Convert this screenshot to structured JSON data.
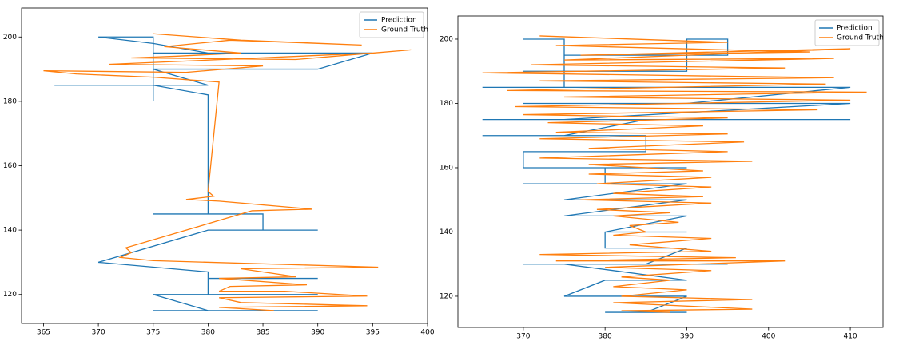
{
  "chart_data": [
    {
      "type": "line",
      "legend": "upper right",
      "grid": false,
      "xlim": [
        363,
        400
      ],
      "ylim": [
        111,
        209
      ],
      "xticks": [
        365,
        370,
        375,
        380,
        385,
        390,
        395,
        400
      ],
      "yticks": [
        120,
        140,
        160,
        180,
        200
      ],
      "series": [
        {
          "name": "Prediction",
          "color": "#1f77b4",
          "x": [
            375,
            375,
            370,
            366,
            380,
            375,
            390,
            395,
            375,
            380,
            375,
            370,
            375,
            375,
            380,
            380,
            380,
            375,
            385,
            385,
            390,
            380,
            370,
            380,
            380,
            390,
            380,
            380,
            390,
            375,
            380,
            375,
            390
          ],
          "values": [
            180,
            185,
            185,
            185,
            185,
            190,
            190,
            195,
            195,
            195,
            198,
            200,
            200,
            185,
            182,
            180,
            145,
            145,
            145,
            140,
            140,
            140,
            130,
            127,
            125,
            125,
            125,
            120,
            120,
            120,
            115,
            115,
            115
          ]
        },
        {
          "name": "Ground Truth",
          "color": "#ff7f0e",
          "x": [
            375,
            383,
            394,
            382,
            376,
            383,
            377,
            373,
            388,
            398.5,
            395,
            371,
            385,
            378,
            365,
            368,
            375,
            381,
            380,
            380.5,
            378,
            381,
            389.5,
            384,
            372.5,
            373,
            372,
            375,
            395.5,
            383,
            386,
            388,
            381,
            389,
            382,
            381,
            387,
            394.5,
            381,
            383,
            394.5,
            381,
            386
          ],
          "values": [
            201,
            199,
            197.5,
            199,
            197,
            195,
            194,
            193.5,
            193,
            196,
            195,
            191.5,
            191,
            189,
            189.5,
            188.5,
            187.5,
            186,
            152,
            150.5,
            149.5,
            149,
            146.5,
            146,
            134.5,
            133,
            131.5,
            130.5,
            128.5,
            128,
            126.5,
            125.5,
            125,
            123,
            122.5,
            121,
            121,
            119.5,
            119,
            117.5,
            116.5,
            116,
            115
          ]
        }
      ]
    },
    {
      "type": "line",
      "legend": "upper right",
      "grid": false,
      "xlim": [
        362,
        414
      ],
      "ylim": [
        110.3,
        207.2
      ],
      "xticks": [
        370,
        380,
        390,
        400,
        410
      ],
      "yticks": [
        120,
        140,
        160,
        180,
        200
      ],
      "series": [
        {
          "name": "Prediction",
          "color": "#1f77b4",
          "x": [
            370,
            375,
            375,
            370,
            390,
            390,
            395,
            395,
            375,
            375,
            365,
            410,
            390,
            370,
            410,
            375,
            365,
            410,
            395,
            385,
            375,
            365,
            385,
            385,
            370,
            370,
            390,
            380,
            380,
            370,
            390,
            375,
            390,
            375,
            390,
            380,
            390,
            380,
            380,
            390,
            385,
            370,
            395,
            375,
            390,
            380,
            375,
            390,
            385,
            380,
            390
          ],
          "values": [
            200,
            200,
            190,
            190,
            190,
            200,
            200,
            195,
            195,
            185,
            185,
            185,
            180,
            180,
            180,
            175,
            175,
            175,
            175,
            175,
            170,
            170,
            170,
            165,
            165,
            160,
            160,
            160,
            155,
            155,
            155,
            150,
            150,
            145,
            145,
            140,
            140,
            140,
            135,
            135,
            130,
            130,
            130,
            130,
            125,
            125,
            120,
            120,
            115,
            115,
            115
          ]
        },
        {
          "name": "Ground Truth",
          "color": "#ff7f0e",
          "x": [
            372,
            395,
            374,
            405,
            377,
            410,
            375,
            408,
            371,
            402,
            365,
            408,
            372,
            407,
            368,
            412,
            375,
            410,
            369,
            406,
            370,
            395,
            373,
            392,
            374,
            395,
            372,
            397,
            378,
            395,
            372,
            398,
            378,
            392,
            378,
            393,
            379,
            393,
            381,
            392,
            377,
            393,
            379,
            388,
            381,
            389,
            383,
            385,
            381,
            393,
            383,
            393,
            372,
            396,
            374,
            402,
            380,
            393,
            382,
            388,
            381,
            390,
            382,
            398,
            381,
            398,
            382,
            388
          ],
          "values": [
            201,
            199,
            198,
            196,
            195,
            197,
            193.5,
            194,
            192,
            191,
            189.5,
            188,
            187,
            186,
            184,
            183.5,
            182,
            181,
            179,
            178,
            176.5,
            175.5,
            174,
            173,
            171,
            170.5,
            169,
            168,
            166,
            165,
            163,
            162,
            161,
            159,
            158,
            157,
            155,
            154,
            152,
            151,
            150,
            149,
            147,
            146,
            145,
            143,
            142,
            140,
            139,
            138,
            136,
            134,
            133,
            132,
            131,
            131,
            129,
            128,
            126,
            125,
            123,
            122,
            120,
            119,
            118,
            116,
            115.5,
            115
          ]
        }
      ]
    }
  ]
}
